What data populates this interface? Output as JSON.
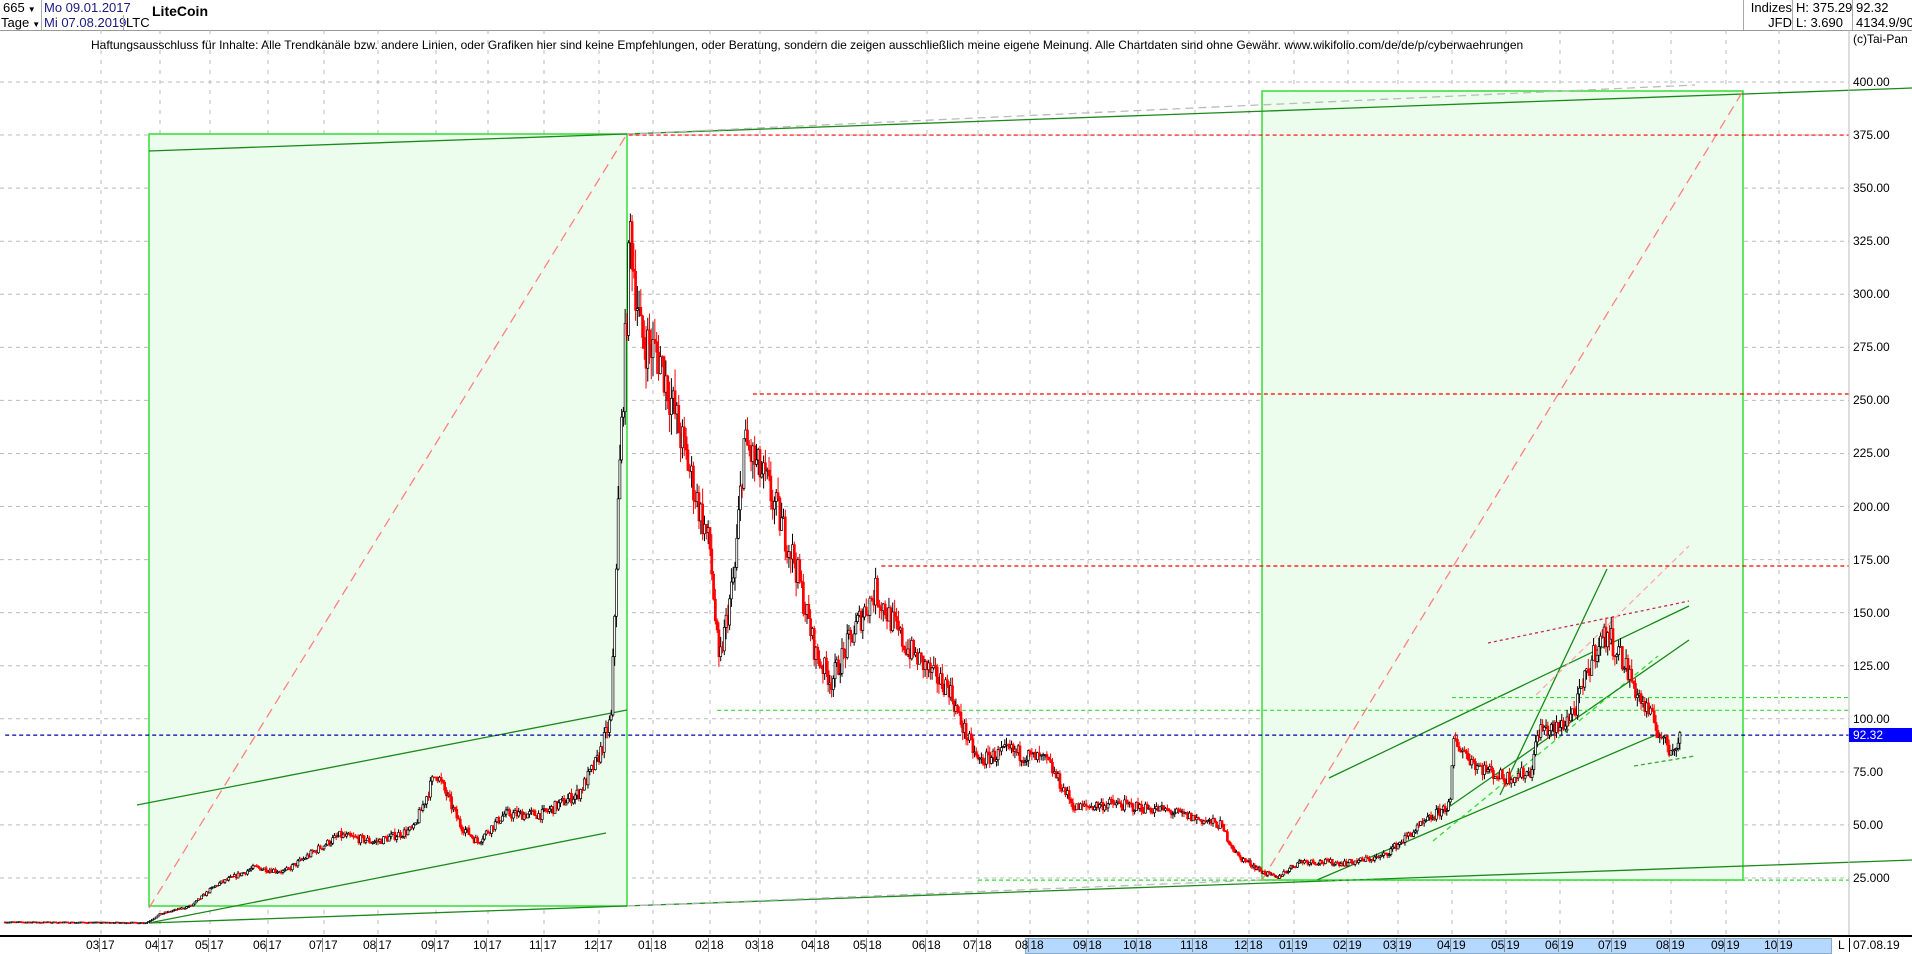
{
  "header": {
    "count": "665",
    "period": "Tage",
    "start_date": "Mo 09.01.2017",
    "end_date": "Mi 07.08.2019",
    "symbol": "LTC",
    "name": "LiteCoin",
    "market_line1": "Indizes",
    "market_line2": "JFD",
    "high": "H: 375.29",
    "low": "L: 3.690",
    "last": "92.32",
    "volume": "4134.9/90",
    "copyright": "(c)Tai-Pan"
  },
  "disclaimer": "Haftungsausschluss für Inhalte: Alle Trendkanäle bzw. andere Linien, oder Grafiken hier sind keine Empfehlungen, oder Beratung, sondern die zeigen ausschließlich meine eigene Meinung. Alle Chartdaten sind ohne Gewähr.  www.wikifolio.com/de/de/p/cyberwaehrungen",
  "xaxis": {
    "labels": [
      [
        "03",
        "17"
      ],
      [
        "04",
        "17"
      ],
      [
        "05",
        "17"
      ],
      [
        "06",
        "17"
      ],
      [
        "07",
        "17"
      ],
      [
        "08",
        "17"
      ],
      [
        "09",
        "17"
      ],
      [
        "10",
        "17"
      ],
      [
        "11",
        "17"
      ],
      [
        "12",
        "17"
      ],
      [
        "01",
        "18"
      ],
      [
        "02",
        "18"
      ],
      [
        "03",
        "18"
      ],
      [
        "04",
        "18"
      ],
      [
        "05",
        "18"
      ],
      [
        "06",
        "18"
      ],
      [
        "07",
        "18"
      ],
      [
        "08",
        "18"
      ],
      [
        "09",
        "18"
      ],
      [
        "10",
        "18"
      ],
      [
        "11",
        "18"
      ],
      [
        "12",
        "18"
      ],
      [
        "01",
        "19"
      ],
      [
        "02",
        "19"
      ],
      [
        "03",
        "19"
      ],
      [
        "04",
        "19"
      ],
      [
        "05",
        "19"
      ],
      [
        "06",
        "19"
      ],
      [
        "07",
        "19"
      ],
      [
        "08",
        "19"
      ],
      [
        "09",
        "19"
      ],
      [
        "10",
        "19"
      ]
    ],
    "scale_mode": "L",
    "current_date": "07.08.19"
  },
  "yaxis": {
    "ticks": [
      "400.00",
      "375.00",
      "350.00",
      "325.00",
      "300.00",
      "275.00",
      "250.00",
      "225.00",
      "200.00",
      "175.00",
      "150.00",
      "125.00",
      "100.00",
      "75.00",
      "50.00",
      "25.000"
    ],
    "last_label": "92.32"
  },
  "chart_data": {
    "type": "candlestick",
    "title": "LiteCoin",
    "ylim": [
      15,
      410
    ],
    "grid": true,
    "colors": {
      "up": "#000000",
      "down": "#ff0000",
      "box_fill": "#edfded",
      "box_border": "#33dd33",
      "trend": "#1a8a1a",
      "last_price": "#0000ff"
    },
    "key_closes": [
      [
        "2017-01-09",
        4.3
      ],
      [
        "2017-03-25",
        4
      ],
      [
        "2017-04-01",
        8
      ],
      [
        "2017-04-20",
        12
      ],
      [
        "2017-05-05",
        22
      ],
      [
        "2017-05-25",
        30
      ],
      [
        "2017-06-10",
        28
      ],
      [
        "2017-06-30",
        40
      ],
      [
        "2017-07-10",
        45
      ],
      [
        "2017-07-31",
        42
      ],
      [
        "2017-08-20",
        48
      ],
      [
        "2017-09-01",
        75
      ],
      [
        "2017-09-15",
        50
      ],
      [
        "2017-09-25",
        42
      ],
      [
        "2017-10-10",
        55
      ],
      [
        "2017-10-31",
        55
      ],
      [
        "2017-11-20",
        65
      ],
      [
        "2017-11-30",
        80
      ],
      [
        "2017-12-08",
        100
      ],
      [
        "2017-12-12",
        200
      ],
      [
        "2017-12-19",
        330
      ],
      [
        "2017-12-25",
        280
      ],
      [
        "2018-01-05",
        270
      ],
      [
        "2018-01-20",
        220
      ],
      [
        "2018-02-01",
        180
      ],
      [
        "2018-02-06",
        125
      ],
      [
        "2018-02-15",
        170
      ],
      [
        "2018-02-20",
        230
      ],
      [
        "2018-03-05",
        210
      ],
      [
        "2018-03-20",
        175
      ],
      [
        "2018-04-01",
        130
      ],
      [
        "2018-04-10",
        118
      ],
      [
        "2018-04-25",
        145
      ],
      [
        "2018-05-05",
        160
      ],
      [
        "2018-05-20",
        135
      ],
      [
        "2018-06-05",
        120
      ],
      [
        "2018-06-14",
        115
      ],
      [
        "2018-06-20",
        100
      ],
      [
        "2018-07-01",
        80
      ],
      [
        "2018-07-20",
        85
      ],
      [
        "2018-08-10",
        80
      ],
      [
        "2018-08-25",
        58
      ],
      [
        "2018-09-15",
        60
      ],
      [
        "2018-10-15",
        57
      ],
      [
        "2018-11-15",
        50
      ],
      [
        "2018-11-25",
        35
      ],
      [
        "2018-12-10",
        28
      ],
      [
        "2018-12-20",
        25
      ],
      [
        "2019-01-05",
        33
      ],
      [
        "2019-01-31",
        32
      ],
      [
        "2019-02-20",
        35
      ],
      [
        "2019-03-10",
        47
      ],
      [
        "2019-03-31",
        60
      ],
      [
        "2019-04-02",
        90
      ],
      [
        "2019-04-15",
        78
      ],
      [
        "2019-04-30",
        72
      ],
      [
        "2019-05-15",
        75
      ],
      [
        "2019-05-20",
        95
      ],
      [
        "2019-05-31",
        95
      ],
      [
        "2019-06-10",
        105
      ],
      [
        "2019-06-22",
        135
      ],
      [
        "2019-06-28",
        140
      ],
      [
        "2019-07-05",
        130
      ],
      [
        "2019-07-15",
        110
      ],
      [
        "2019-07-25",
        95
      ],
      [
        "2019-07-31",
        85
      ],
      [
        "2019-08-07",
        92.32
      ]
    ],
    "horizontal_lines": [
      {
        "price": 375,
        "color": "#ff0000",
        "from": "2017-12-18"
      },
      {
        "price": 253,
        "color": "#ff0000",
        "from": "2018-02-25"
      },
      {
        "price": 172,
        "color": "#ff0000",
        "from": "2018-05-08"
      },
      {
        "price": 104,
        "color": "#33dd33",
        "from": "2018-02-05"
      },
      {
        "price": 110,
        "color": "#33dd33",
        "from": "2019-04-01"
      },
      {
        "price": 24,
        "color": "#33dd33",
        "from": "2018-07-01"
      },
      {
        "price": 92.32,
        "color": "#0000aa",
        "from": "2017-01-09"
      }
    ]
  }
}
